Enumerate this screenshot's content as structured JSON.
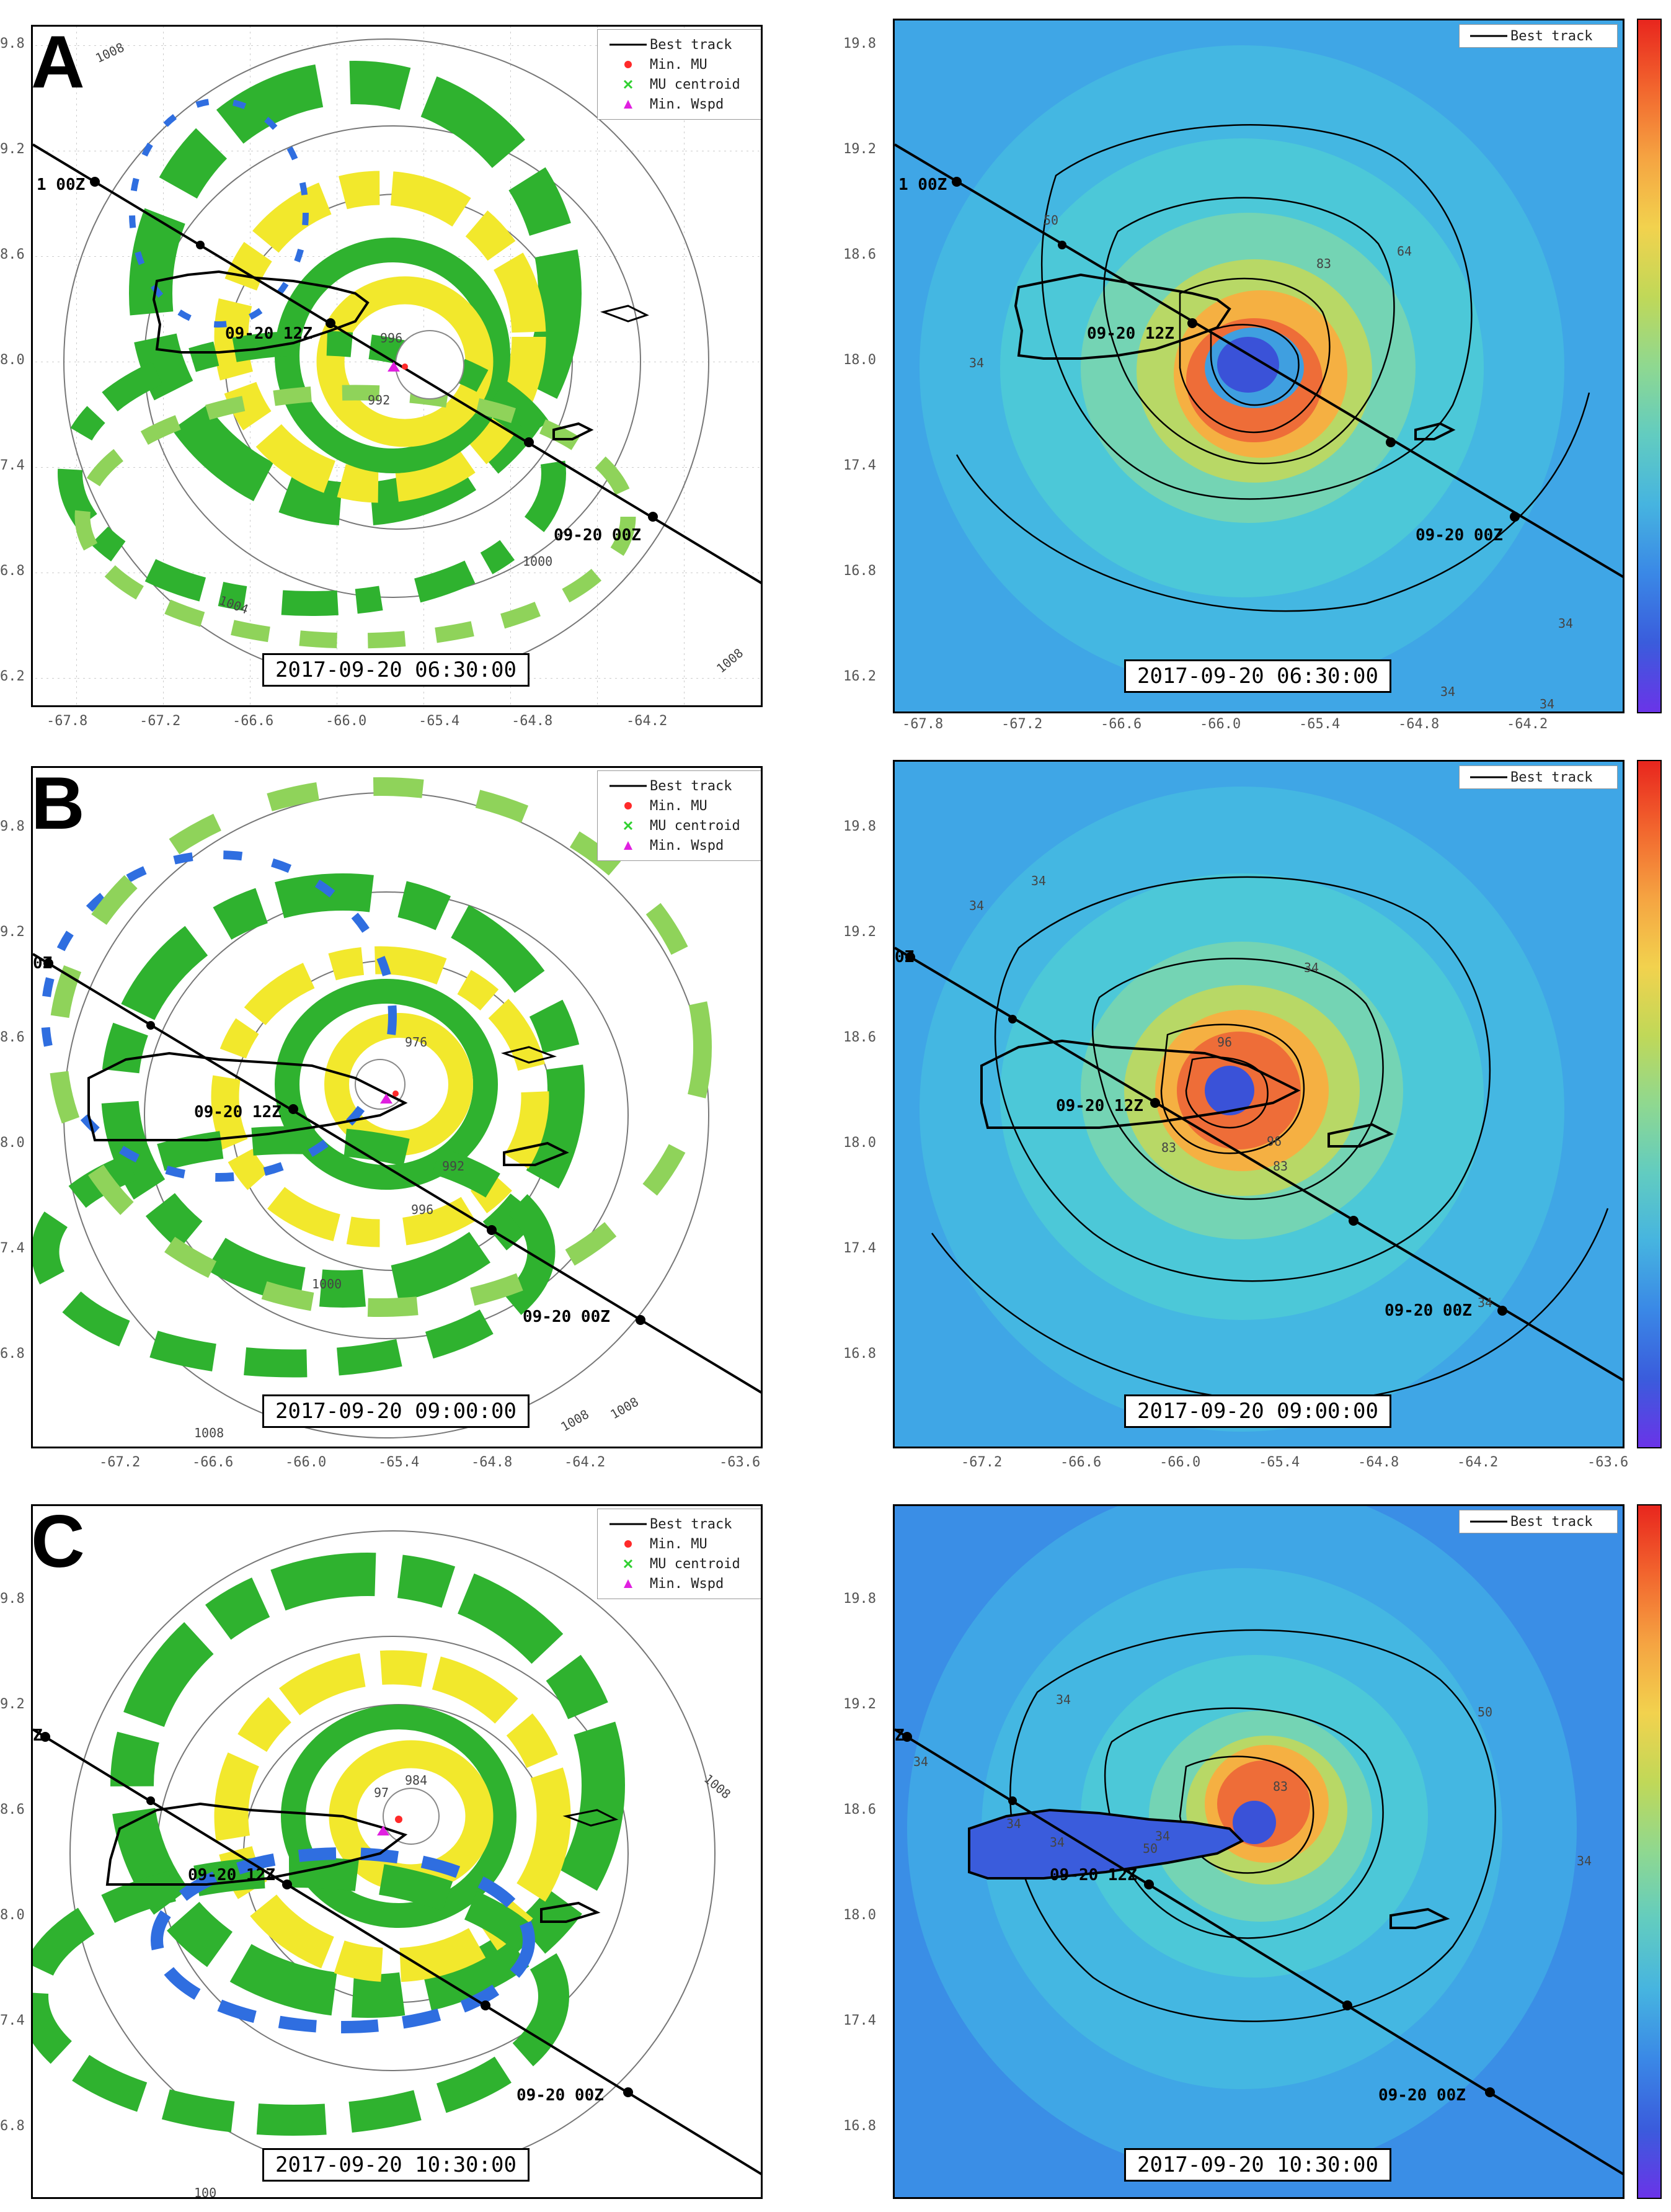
{
  "panels": [
    {
      "label": "A",
      "timestamp": "2017-09-20 06:30:00",
      "left": {
        "legend": [
          "Best track",
          "Min. MU",
          "MU centroid",
          "Min. Wspd"
        ],
        "x_ticks": [
          "-67.8",
          "-67.2",
          "-66.6",
          "-66.0",
          "-65.4",
          "-64.8",
          "-64.2"
        ],
        "y_ticks": [
          "9.8",
          "9.2",
          "8.6",
          "8.0",
          "7.4",
          "6.8",
          "6.2"
        ],
        "track_labels": [
          "1 00Z",
          "09-20 12Z",
          "09-20 00Z"
        ],
        "contour_labels": [
          "1008",
          "1000",
          "1004",
          "996",
          "992",
          "1008"
        ]
      },
      "right": {
        "legend": [
          "Best track"
        ],
        "x_ticks": [
          "-67.8",
          "-67.2",
          "-66.6",
          "-66.0",
          "-65.4",
          "-64.8",
          "-64.2"
        ],
        "y_ticks": [
          "19.8",
          "19.2",
          "18.6",
          "18.0",
          "17.4",
          "16.8",
          "16.2"
        ],
        "track_labels": [
          "1 00Z",
          "09-20 12Z",
          "09-20 00Z"
        ],
        "contour_labels": [
          "50",
          "64",
          "83",
          "34",
          "34",
          "34",
          "34"
        ]
      }
    },
    {
      "label": "B",
      "timestamp": "2017-09-20 09:00:00",
      "left": {
        "legend": [
          "Best track",
          "Min. MU",
          "MU centroid",
          "Min. Wspd"
        ],
        "x_ticks": [
          "-67.2",
          "-66.6",
          "-66.0",
          "-65.4",
          "-64.8",
          "-64.2",
          "-63.6"
        ],
        "y_ticks": [
          "9.8",
          "9.2",
          "8.6",
          "8.0",
          "7.4",
          "6.8"
        ],
        "track_labels": [
          "0Z",
          "09-20 12Z",
          "09-20 00Z"
        ],
        "contour_labels": [
          "976",
          "992",
          "996",
          "1000",
          "1008",
          "1008",
          "1008"
        ]
      },
      "right": {
        "legend": [
          "Best track"
        ],
        "x_ticks": [
          "-67.2",
          "-66.6",
          "-66.0",
          "-65.4",
          "-64.8",
          "-64.2",
          "-63.6"
        ],
        "y_ticks": [
          "19.8",
          "19.2",
          "18.6",
          "18.0",
          "17.4",
          "16.8"
        ],
        "track_labels": [
          "0Z",
          "09-20 12Z",
          "09-20 00Z"
        ],
        "contour_labels": [
          "34",
          "34",
          "96",
          "83",
          "96",
          "83",
          "34",
          "34"
        ]
      }
    },
    {
      "label": "C",
      "timestamp": "2017-09-20 10:30:00",
      "left": {
        "legend": [
          "Best track",
          "Min. MU",
          "MU centroid",
          "Min. Wspd"
        ],
        "x_ticks": [],
        "y_ticks": [
          "9.8",
          "9.2",
          "8.6",
          "8.0",
          "7.4",
          "6.8"
        ],
        "track_labels": [
          "Z",
          "09-20 12Z",
          "09-20 00Z"
        ],
        "contour_labels": [
          "984",
          "97",
          "1008",
          "100"
        ]
      },
      "right": {
        "legend": [
          "Best track"
        ],
        "x_ticks": [],
        "y_ticks": [
          "19.8",
          "19.2",
          "18.6",
          "18.0",
          "17.4",
          "16.8"
        ],
        "track_labels": [
          "Z",
          "09-20 12Z",
          "09-20 00Z"
        ],
        "contour_labels": [
          "83",
          "50",
          "34",
          "34",
          "34",
          "34",
          "34",
          "50",
          "34"
        ]
      }
    }
  ],
  "colors": {
    "track": "#000000",
    "min_mu": "#ff2a2a",
    "mu_centroid": "#30d030",
    "min_wspd": "#e020e0",
    "radar_green": "#2fb22f",
    "radar_lightgreen": "#8fd35a",
    "radar_yellow": "#f2e82c",
    "radar_blue": "#2f6ee0",
    "wind_bg": "#3fa6e6"
  }
}
